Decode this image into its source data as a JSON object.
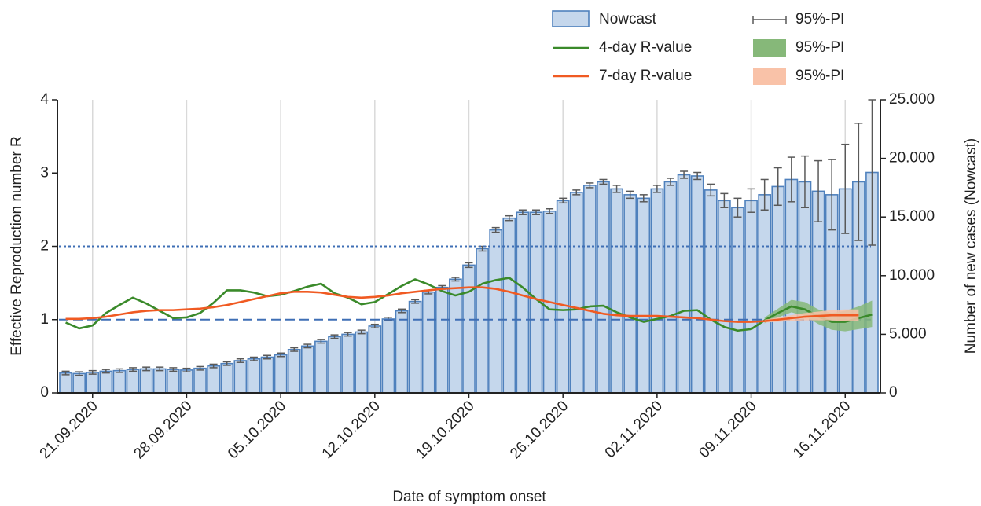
{
  "chart_data": {
    "type": "bar",
    "x_label": "Date of symptom onset",
    "y_label": "Effective Reproduction number R",
    "y2_label": "Number of new cases (Nowcast)",
    "categories": [
      null,
      null,
      "21.09.2020",
      null,
      null,
      null,
      null,
      null,
      null,
      "28.09.2020",
      null,
      null,
      null,
      null,
      null,
      null,
      "05.10.2020",
      null,
      null,
      null,
      null,
      null,
      null,
      "12.10.2020",
      null,
      null,
      null,
      null,
      null,
      null,
      "19.10.2020",
      null,
      null,
      null,
      null,
      null,
      null,
      "26.10.2020",
      null,
      null,
      null,
      null,
      null,
      null,
      "02.11.2020",
      null,
      null,
      null,
      null,
      null,
      null,
      "09.11.2020",
      null,
      null,
      null,
      null,
      null,
      null,
      "16.11.2020",
      null,
      null
    ],
    "ylim": [
      0,
      4
    ],
    "yticks": [
      0,
      1,
      2,
      3,
      4
    ],
    "y2lim": [
      0,
      25000
    ],
    "y2ticks": [
      0,
      {
        "value": 5000,
        "label": "5.000"
      },
      {
        "value": 10000,
        "label": "10.000"
      },
      {
        "value": 15000,
        "label": "15.000"
      },
      {
        "value": 20000,
        "label": "20.000"
      },
      {
        "value": 25000,
        "label": "25.000"
      }
    ],
    "xgrid": true,
    "reference_lines": [
      {
        "value": 1,
        "style": "dashed",
        "color": "#3f6fb5"
      },
      {
        "value": 2,
        "style": "dotted",
        "color": "#3f6fb5"
      }
    ],
    "series": [
      {
        "name": "Nowcast",
        "type": "bar",
        "axis": "y2",
        "color": "#c5d7ec",
        "edge_color": "#4f81bd",
        "error_name": "95%-PI",
        "error_color": "#595959",
        "values": [
          1700,
          1650,
          1750,
          1850,
          1900,
          2000,
          2050,
          2050,
          2000,
          1950,
          2100,
          2300,
          2500,
          2750,
          2900,
          3050,
          3250,
          3700,
          4000,
          4400,
          4800,
          5000,
          5200,
          5700,
          6300,
          7000,
          7800,
          8600,
          9000,
          9700,
          10900,
          12300,
          13900,
          14900,
          15400,
          15400,
          15500,
          16400,
          17100,
          17700,
          18000,
          17400,
          16900,
          16600,
          17400,
          18000,
          18600,
          18500,
          17300,
          16400,
          15800,
          16400,
          16900,
          17600,
          18200,
          18000,
          17200,
          16900,
          17400,
          18000,
          18800
        ],
        "errors": [
          150,
          150,
          150,
          150,
          150,
          150,
          150,
          150,
          150,
          150,
          150,
          150,
          150,
          150,
          150,
          150,
          150,
          150,
          150,
          150,
          150,
          150,
          150,
          150,
          150,
          150,
          150,
          150,
          150,
          150,
          200,
          200,
          200,
          200,
          200,
          200,
          200,
          200,
          200,
          200,
          200,
          300,
          300,
          300,
          300,
          300,
          300,
          300,
          500,
          600,
          800,
          1000,
          1300,
          1600,
          1900,
          2200,
          2600,
          3000,
          3800,
          5000,
          6200
        ]
      },
      {
        "name": "4-day R-value",
        "type": "line",
        "axis": "y",
        "color": "#3a8a2a",
        "band_name": "95%-PI",
        "band_color": "#86b879",
        "values": [
          0.96,
          0.88,
          0.92,
          1.09,
          1.2,
          1.3,
          1.22,
          1.12,
          1.02,
          1.03,
          1.09,
          1.23,
          1.4,
          1.4,
          1.37,
          1.32,
          1.34,
          1.39,
          1.45,
          1.49,
          1.36,
          1.3,
          1.21,
          1.24,
          1.35,
          1.46,
          1.55,
          1.48,
          1.39,
          1.33,
          1.38,
          1.49,
          1.54,
          1.57,
          1.44,
          1.28,
          1.14,
          1.13,
          1.14,
          1.18,
          1.19,
          1.1,
          1.03,
          0.97,
          1.01,
          1.05,
          1.12,
          1.13,
          1.0,
          0.9,
          0.85,
          0.87,
          0.99,
          1.09,
          1.18,
          1.14,
          1.04,
          0.97,
          0.97,
          1.02,
          1.07
        ],
        "lower": [
          null,
          null,
          null,
          null,
          null,
          null,
          null,
          null,
          null,
          null,
          null,
          null,
          null,
          null,
          null,
          null,
          null,
          null,
          null,
          null,
          null,
          null,
          null,
          null,
          null,
          null,
          null,
          null,
          null,
          null,
          null,
          null,
          null,
          null,
          null,
          null,
          null,
          null,
          null,
          null,
          null,
          null,
          null,
          null,
          null,
          null,
          null,
          null,
          null,
          null,
          null,
          null,
          0.95,
          1.03,
          1.1,
          1.05,
          0.94,
          0.86,
          0.84,
          0.87,
          0.9
        ],
        "upper": [
          null,
          null,
          null,
          null,
          null,
          null,
          null,
          null,
          null,
          null,
          null,
          null,
          null,
          null,
          null,
          null,
          null,
          null,
          null,
          null,
          null,
          null,
          null,
          null,
          null,
          null,
          null,
          null,
          null,
          null,
          null,
          null,
          null,
          null,
          null,
          null,
          null,
          null,
          null,
          null,
          null,
          null,
          null,
          null,
          null,
          null,
          null,
          null,
          null,
          null,
          null,
          null,
          1.03,
          1.15,
          1.27,
          1.24,
          1.14,
          1.09,
          1.12,
          1.18,
          1.26
        ]
      },
      {
        "name": "7-day R-value",
        "type": "line",
        "axis": "y",
        "color": "#f05a22",
        "band_name": "95%-PI",
        "band_color": "#f9c2a8",
        "values": [
          1.01,
          1.01,
          1.02,
          1.04,
          1.07,
          1.1,
          1.12,
          1.13,
          1.13,
          1.14,
          1.15,
          1.17,
          1.2,
          1.24,
          1.28,
          1.32,
          1.36,
          1.38,
          1.38,
          1.37,
          1.34,
          1.31,
          1.3,
          1.31,
          1.33,
          1.36,
          1.38,
          1.4,
          1.42,
          1.43,
          1.44,
          1.44,
          1.42,
          1.38,
          1.33,
          1.28,
          1.24,
          1.2,
          1.16,
          1.12,
          1.08,
          1.06,
          1.05,
          1.05,
          1.05,
          1.04,
          1.03,
          1.02,
          1.0,
          0.98,
          0.97,
          0.97,
          0.98,
          1.0,
          1.02,
          1.04,
          1.05,
          1.06,
          1.06,
          1.06,
          null
        ],
        "lower": [
          null,
          null,
          null,
          null,
          null,
          null,
          null,
          null,
          null,
          null,
          null,
          null,
          null,
          null,
          null,
          null,
          null,
          null,
          null,
          null,
          null,
          null,
          null,
          null,
          null,
          null,
          null,
          null,
          null,
          null,
          null,
          null,
          null,
          null,
          null,
          null,
          null,
          null,
          null,
          null,
          null,
          null,
          null,
          null,
          null,
          null,
          null,
          null,
          null,
          null,
          null,
          null,
          0.96,
          0.97,
          0.98,
          0.99,
          0.99,
          0.99,
          0.98,
          0.98,
          null
        ],
        "upper": [
          null,
          null,
          null,
          null,
          null,
          null,
          null,
          null,
          null,
          null,
          null,
          null,
          null,
          null,
          null,
          null,
          null,
          null,
          null,
          null,
          null,
          null,
          null,
          null,
          null,
          null,
          null,
          null,
          null,
          null,
          null,
          null,
          null,
          null,
          null,
          null,
          null,
          null,
          null,
          null,
          null,
          null,
          null,
          null,
          null,
          null,
          null,
          null,
          null,
          null,
          null,
          null,
          1.0,
          1.03,
          1.06,
          1.09,
          1.11,
          1.13,
          1.14,
          1.14,
          null
        ]
      }
    ]
  }
}
